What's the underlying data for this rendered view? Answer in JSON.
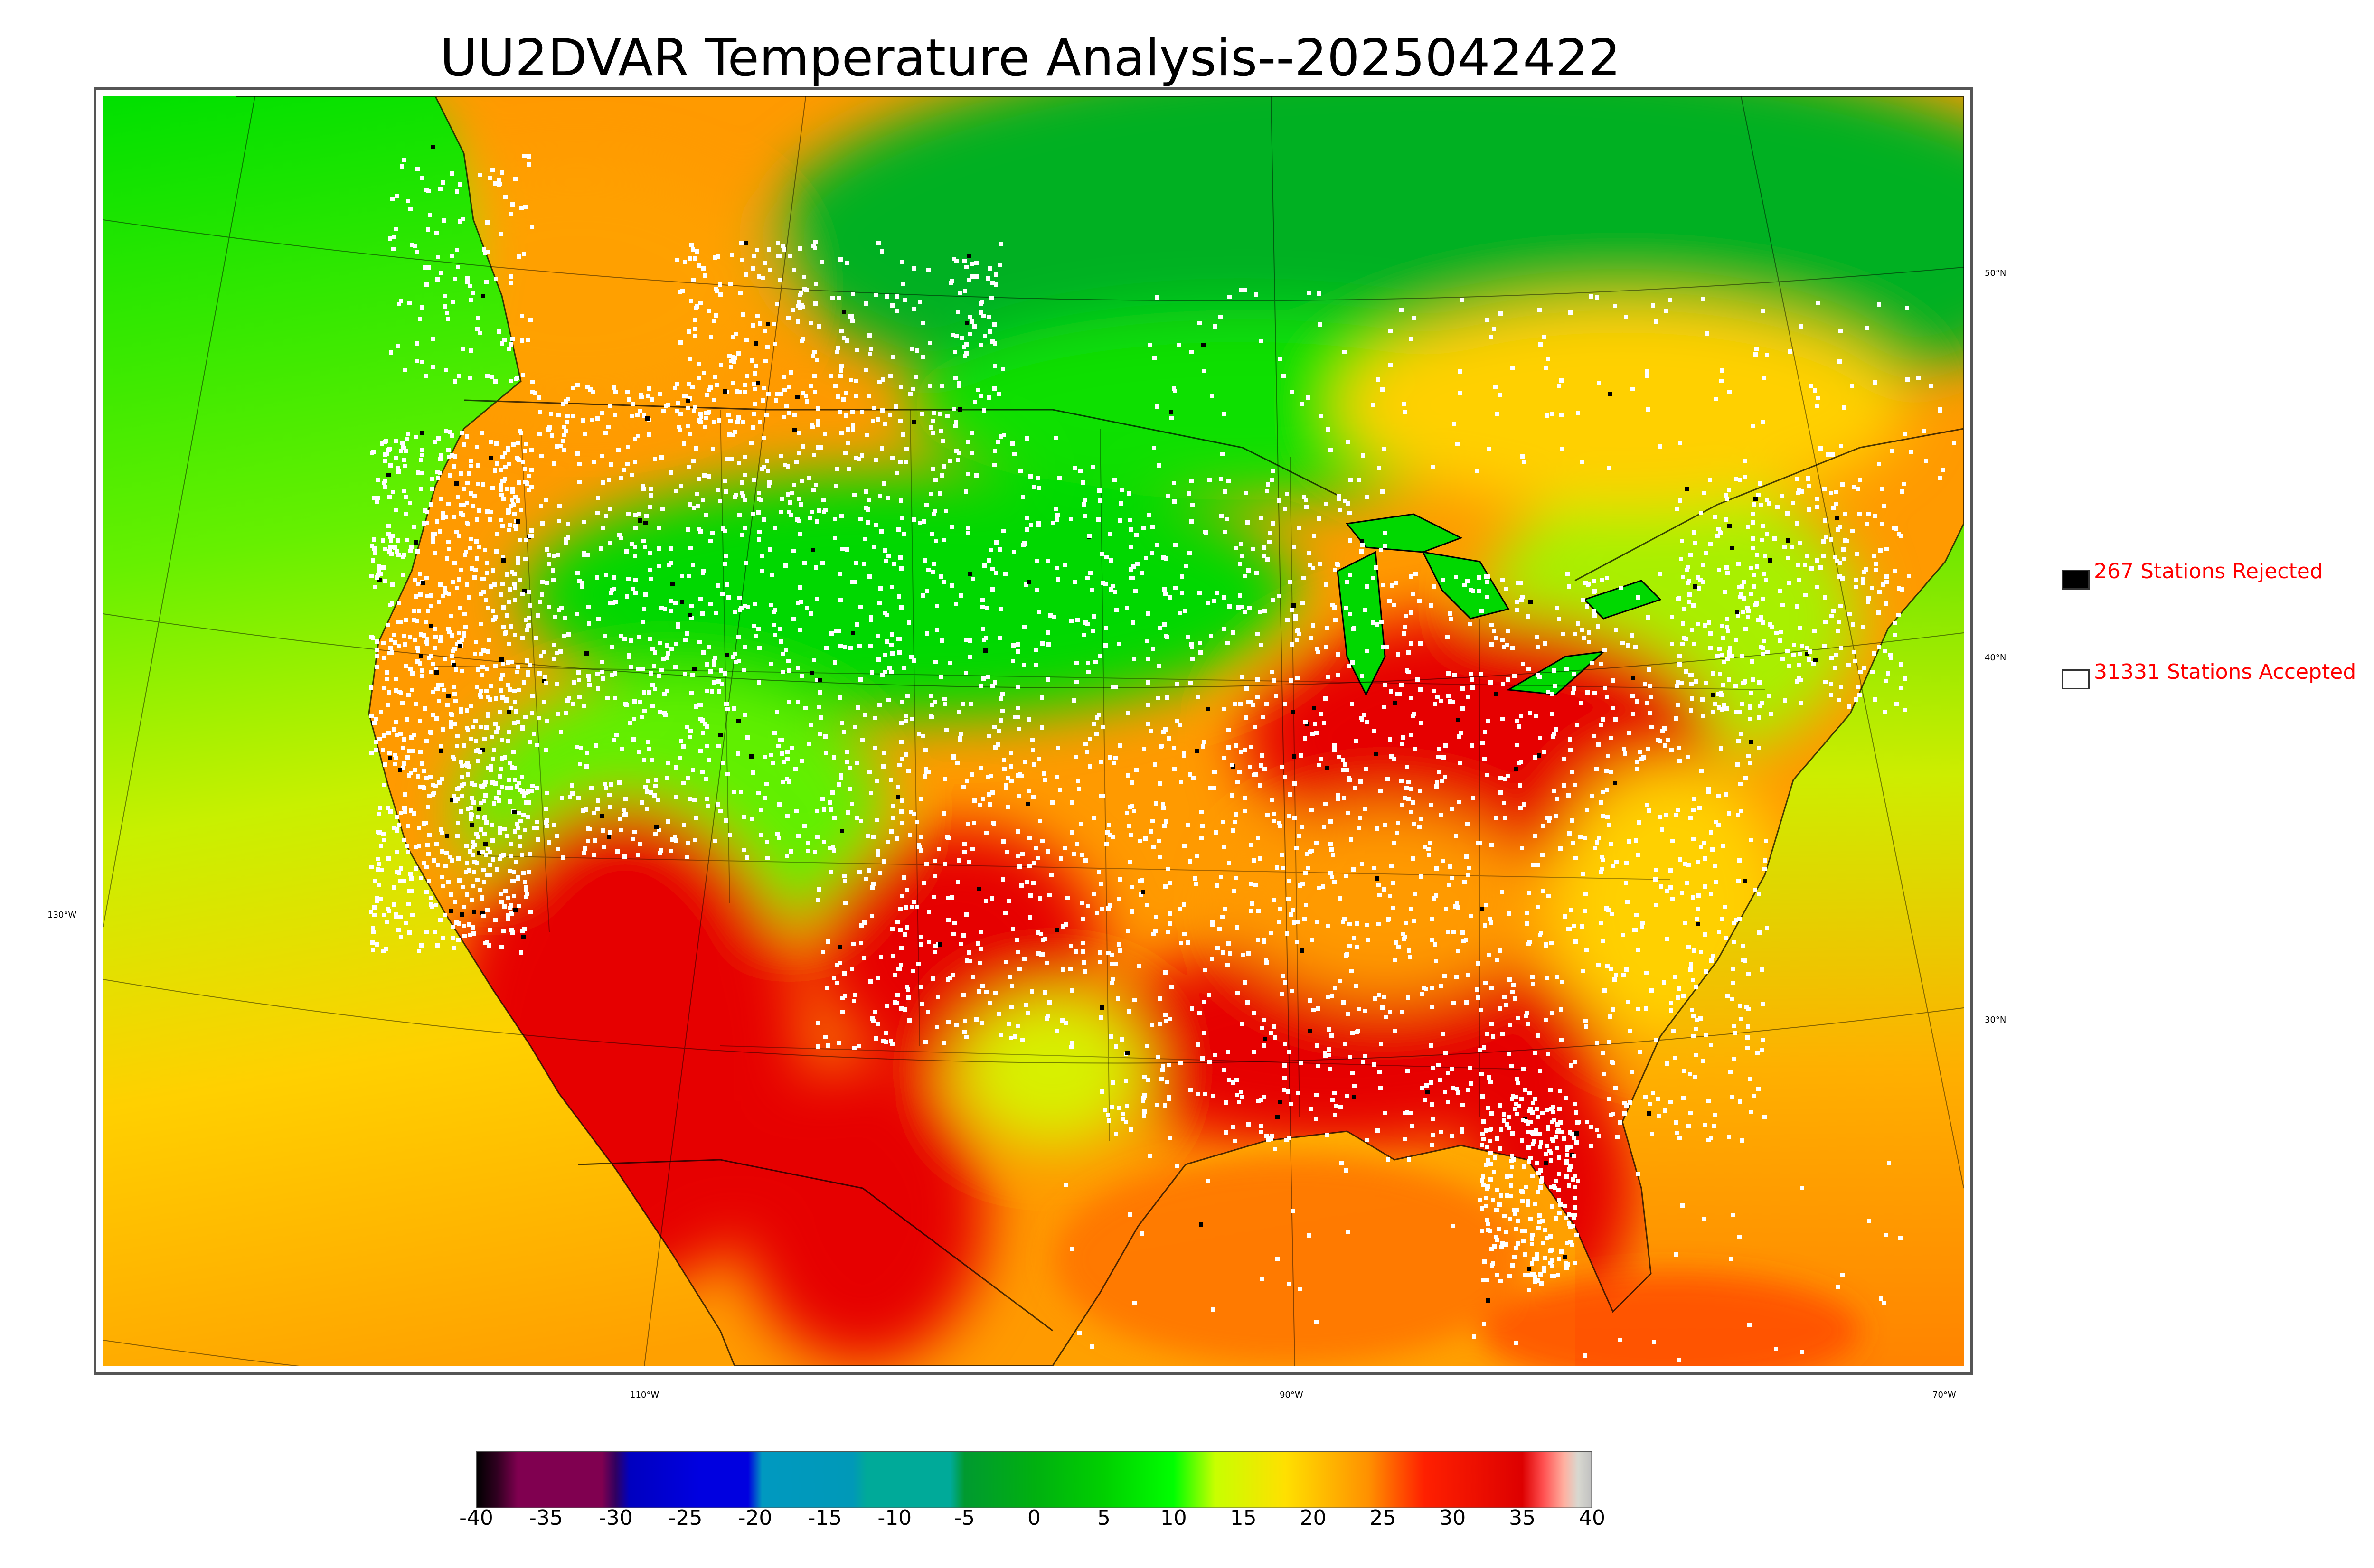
{
  "title": "UU2DVAR Temperature Analysis--2025042422",
  "legend": {
    "rejected": {
      "label": "267 Stations Rejected",
      "color": "#000000"
    },
    "accepted": {
      "label": "31331 Stations Accepted",
      "color": "#ffffff"
    }
  },
  "map_labels": {
    "lat": [
      "50°N",
      "40°N",
      "30°N"
    ],
    "lon": [
      "130°W",
      "110°W",
      "90°W",
      "70°W"
    ]
  },
  "colorbar": {
    "ticks": [
      "-40",
      "-35",
      "-30",
      "-25",
      "-20",
      "-15",
      "-10",
      "-5",
      "0",
      "5",
      "10",
      "15",
      "20",
      "25",
      "30",
      "35",
      "40"
    ],
    "range": [
      -40,
      40
    ],
    "stops": [
      {
        "v": -40,
        "c": "#000000"
      },
      {
        "v": -38.5,
        "c": "#300020"
      },
      {
        "v": -37,
        "c": "#800050"
      },
      {
        "v": -31,
        "c": "#800050"
      },
      {
        "v": -30,
        "c": "#300060"
      },
      {
        "v": -29,
        "c": "#0000c0"
      },
      {
        "v": -24,
        "c": "#0000e0"
      },
      {
        "v": -20.5,
        "c": "#0000e0"
      },
      {
        "v": -19.5,
        "c": "#0099c0"
      },
      {
        "v": -13,
        "c": "#0099b8"
      },
      {
        "v": -12,
        "c": "#00aa99"
      },
      {
        "v": -6,
        "c": "#00aa99"
      },
      {
        "v": -5,
        "c": "#009a30"
      },
      {
        "v": 0,
        "c": "#00b010"
      },
      {
        "v": 5,
        "c": "#00d000"
      },
      {
        "v": 10,
        "c": "#00ff00"
      },
      {
        "v": 13,
        "c": "#c8ff00"
      },
      {
        "v": 18,
        "c": "#ffe000"
      },
      {
        "v": 24,
        "c": "#ff9000"
      },
      {
        "v": 28,
        "c": "#ff2000"
      },
      {
        "v": 35,
        "c": "#dd0000"
      },
      {
        "v": 36.5,
        "c": "#ff5050"
      },
      {
        "v": 38,
        "c": "#ffb0a0"
      },
      {
        "v": 39,
        "c": "#d8d8d0"
      },
      {
        "v": 40,
        "c": "#c0c0c0"
      }
    ]
  },
  "colors": {
    "ocean_north": "#00e600",
    "ocean_south": "#ffa000",
    "land_hot": "#e60000",
    "land_warm": "#ff9a00",
    "land_cool": "#00e000",
    "canada": "#00b020",
    "boundary": "#000000",
    "station_accepted": "#ffffff",
    "station_rejected": "#000000"
  }
}
